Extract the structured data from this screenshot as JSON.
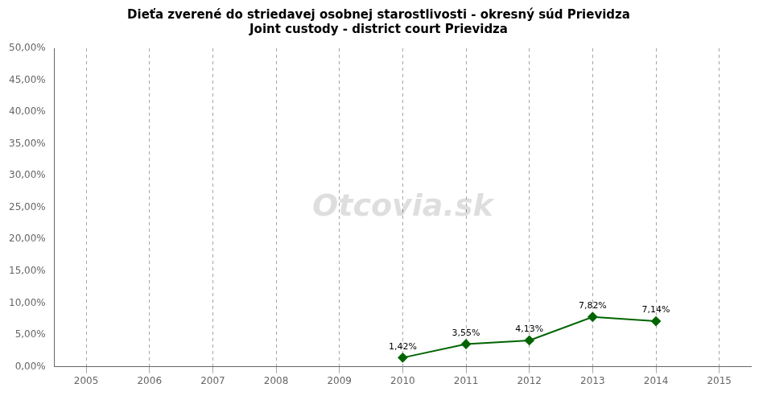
{
  "chart_data": {
    "type": "line",
    "title": "Dieťa zverené do striedavej osobnej starostlivosti - okresný súd Prievidza\nJoint custody - district court Prievidza",
    "x": [
      2010,
      2011,
      2012,
      2013,
      2014
    ],
    "values": [
      0.0142,
      0.0355,
      0.0413,
      0.0782,
      0.0714
    ],
    "value_labels": [
      "1,42%",
      "3,55%",
      "4,13%",
      "7,82%",
      "7,14%"
    ],
    "data_labels": true,
    "color": "#006400",
    "marker": "diamond",
    "xlim": [
      2004.5,
      2015.5
    ],
    "xticks": [
      2005,
      2006,
      2007,
      2008,
      2009,
      2010,
      2011,
      2012,
      2013,
      2014,
      2015
    ],
    "ylim": [
      0.0,
      0.5
    ],
    "yticks": [
      {
        "value": 0.0,
        "label": "0,00%"
      },
      {
        "value": 0.05,
        "label": "5,00%"
      },
      {
        "value": 0.1,
        "label": "10,00%"
      },
      {
        "value": 0.15,
        "label": "15,00%"
      },
      {
        "value": 0.2,
        "label": "20,00%"
      },
      {
        "value": 0.25,
        "label": "25,00%"
      },
      {
        "value": 0.3,
        "label": "30,00%"
      },
      {
        "value": 0.35,
        "label": "35,00%"
      },
      {
        "value": 0.4,
        "label": "40,00%"
      },
      {
        "value": 0.45,
        "label": "45,00%"
      },
      {
        "value": 0.5,
        "label": "50,00%"
      }
    ],
    "grid": "x",
    "legend": false,
    "annotations": [
      {
        "text": "Otcovia.sk"
      }
    ]
  }
}
